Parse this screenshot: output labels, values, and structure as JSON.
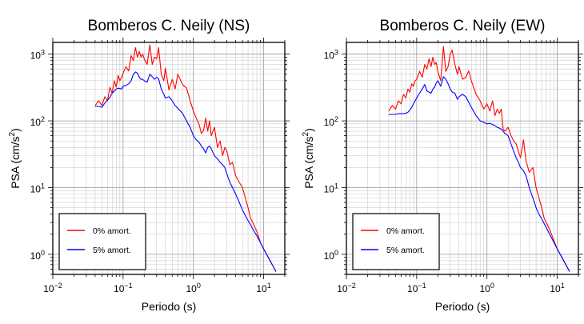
{
  "chart_data": [
    {
      "type": "line",
      "title": "Bomberos C. Neily (NS)",
      "xlabel": "Periodo (s)",
      "ylabel_main": "PSA (cm/s",
      "ylabel_sup": "2",
      "ylabel_close": ")",
      "xscale": "log",
      "yscale": "log",
      "xlim": [
        0.01,
        20
      ],
      "ylim": [
        0.5,
        1500
      ],
      "grid": true,
      "legend_position": "bottom-left",
      "xticks": [
        {
          "value": 0.01,
          "base": "10",
          "exp": "−2"
        },
        {
          "value": 0.1,
          "base": "10",
          "exp": "−1"
        },
        {
          "value": 1,
          "base": "10",
          "exp": "0"
        },
        {
          "value": 10,
          "base": "10",
          "exp": "1"
        }
      ],
      "yticks": [
        {
          "value": 1,
          "base": "10",
          "exp": "0"
        },
        {
          "value": 10,
          "base": "10",
          "exp": "1"
        },
        {
          "value": 100,
          "base": "10",
          "exp": "2"
        },
        {
          "value": 1000,
          "base": "10",
          "exp": "3"
        }
      ],
      "series": [
        {
          "name": "0% amort.",
          "color": "#ff0000",
          "x": [
            0.04,
            0.045,
            0.05,
            0.055,
            0.06,
            0.065,
            0.07,
            0.075,
            0.08,
            0.085,
            0.09,
            0.095,
            0.1,
            0.11,
            0.12,
            0.13,
            0.14,
            0.15,
            0.16,
            0.17,
            0.18,
            0.19,
            0.2,
            0.22,
            0.24,
            0.26,
            0.28,
            0.3,
            0.32,
            0.35,
            0.38,
            0.4,
            0.45,
            0.5,
            0.55,
            0.6,
            0.7,
            0.8,
            0.9,
            1.0,
            1.1,
            1.2,
            1.3,
            1.4,
            1.5,
            1.6,
            1.7,
            1.8,
            2.0,
            2.2,
            2.4,
            2.6,
            2.8,
            3.0,
            3.3,
            3.6,
            4.0,
            4.5,
            5.0,
            5.5,
            6.0,
            6.5,
            7.0,
            8.0,
            9.0,
            10.0,
            12.0,
            15.0
          ],
          "y": [
            170,
            200,
            170,
            230,
            200,
            320,
            260,
            400,
            320,
            480,
            400,
            450,
            520,
            650,
            560,
            950,
            800,
            1250,
            900,
            1100,
            900,
            1000,
            850,
            700,
            1380,
            700,
            900,
            850,
            1250,
            500,
            400,
            620,
            290,
            420,
            300,
            500,
            350,
            310,
            200,
            140,
            110,
            90,
            65,
            72,
            110,
            70,
            100,
            60,
            80,
            40,
            50,
            30,
            40,
            35,
            22,
            24,
            15,
            12,
            10,
            7,
            5,
            3.5,
            3,
            2.2,
            1.5,
            1.2,
            0.85,
            0.55
          ]
        },
        {
          "name": "5% amort.",
          "color": "#0000ff",
          "x": [
            0.04,
            0.045,
            0.05,
            0.055,
            0.06,
            0.065,
            0.07,
            0.075,
            0.08,
            0.085,
            0.09,
            0.095,
            0.1,
            0.11,
            0.12,
            0.13,
            0.14,
            0.15,
            0.16,
            0.17,
            0.18,
            0.19,
            0.2,
            0.22,
            0.24,
            0.26,
            0.28,
            0.3,
            0.32,
            0.35,
            0.38,
            0.4,
            0.45,
            0.5,
            0.55,
            0.6,
            0.7,
            0.8,
            0.9,
            1.0,
            1.1,
            1.2,
            1.3,
            1.4,
            1.5,
            1.6,
            1.7,
            1.8,
            2.0,
            2.2,
            2.4,
            2.6,
            2.8,
            3.0,
            3.3,
            3.6,
            4.0,
            4.5,
            5.0,
            5.5,
            6.0,
            6.5,
            7.0,
            8.0,
            9.0,
            10.0,
            12.0,
            15.0
          ],
          "y": [
            165,
            165,
            160,
            185,
            205,
            225,
            260,
            280,
            300,
            310,
            305,
            300,
            330,
            340,
            360,
            400,
            500,
            540,
            520,
            450,
            420,
            420,
            400,
            380,
            500,
            460,
            420,
            450,
            430,
            300,
            250,
            220,
            230,
            200,
            170,
            155,
            130,
            100,
            80,
            60,
            52,
            48,
            42,
            38,
            33,
            40,
            42,
            38,
            30,
            27,
            24,
            22,
            20,
            16,
            12,
            10,
            8,
            6,
            4.6,
            3.8,
            3.2,
            2.8,
            2.4,
            1.9,
            1.5,
            1.2,
            0.85,
            0.55
          ]
        }
      ]
    },
    {
      "type": "line",
      "title": "Bomberos C. Neily (EW)",
      "xlabel": "Periodo (s)",
      "ylabel_main": "PSA (cm/s",
      "ylabel_sup": "2",
      "ylabel_close": ")",
      "xscale": "log",
      "yscale": "log",
      "xlim": [
        0.01,
        20
      ],
      "ylim": [
        0.5,
        1500
      ],
      "grid": true,
      "legend_position": "bottom-left",
      "xticks": [
        {
          "value": 0.01,
          "base": "10",
          "exp": "−2"
        },
        {
          "value": 0.1,
          "base": "10",
          "exp": "−1"
        },
        {
          "value": 1,
          "base": "10",
          "exp": "0"
        },
        {
          "value": 10,
          "base": "10",
          "exp": "1"
        }
      ],
      "yticks": [
        {
          "value": 1,
          "base": "10",
          "exp": "0"
        },
        {
          "value": 10,
          "base": "10",
          "exp": "1"
        },
        {
          "value": 100,
          "base": "10",
          "exp": "2"
        },
        {
          "value": 1000,
          "base": "10",
          "exp": "3"
        }
      ],
      "series": [
        {
          "name": "0% amort.",
          "color": "#ff0000",
          "x": [
            0.04,
            0.045,
            0.05,
            0.055,
            0.06,
            0.065,
            0.07,
            0.075,
            0.08,
            0.085,
            0.09,
            0.095,
            0.1,
            0.11,
            0.12,
            0.13,
            0.14,
            0.15,
            0.16,
            0.17,
            0.18,
            0.19,
            0.2,
            0.22,
            0.24,
            0.26,
            0.28,
            0.3,
            0.32,
            0.35,
            0.38,
            0.4,
            0.45,
            0.5,
            0.55,
            0.6,
            0.7,
            0.8,
            0.9,
            1.0,
            1.1,
            1.2,
            1.3,
            1.4,
            1.5,
            1.6,
            1.7,
            1.8,
            2.0,
            2.2,
            2.4,
            2.6,
            2.8,
            3.0,
            3.3,
            3.6,
            4.0,
            4.5,
            5.0,
            5.5,
            6.0,
            6.5,
            7.0,
            8.0,
            9.0,
            10.0,
            12.0,
            15.0
          ],
          "y": [
            140,
            170,
            150,
            200,
            180,
            250,
            220,
            300,
            270,
            360,
            330,
            400,
            420,
            550,
            450,
            700,
            600,
            850,
            650,
            900,
            700,
            750,
            550,
            400,
            1300,
            550,
            650,
            1000,
            1150,
            700,
            500,
            650,
            420,
            450,
            560,
            400,
            250,
            200,
            150,
            180,
            140,
            200,
            120,
            150,
            130,
            150,
            75,
            70,
            80,
            60,
            50,
            45,
            35,
            28,
            52,
            25,
            17,
            20,
            10,
            7,
            5,
            3.5,
            3,
            2.2,
            1.6,
            1.2,
            0.85,
            0.55
          ]
        },
        {
          "name": "5% amort.",
          "color": "#0000ff",
          "x": [
            0.04,
            0.045,
            0.05,
            0.055,
            0.06,
            0.065,
            0.07,
            0.075,
            0.08,
            0.085,
            0.09,
            0.095,
            0.1,
            0.11,
            0.12,
            0.13,
            0.14,
            0.15,
            0.16,
            0.17,
            0.18,
            0.19,
            0.2,
            0.22,
            0.24,
            0.26,
            0.28,
            0.3,
            0.32,
            0.35,
            0.38,
            0.4,
            0.45,
            0.5,
            0.55,
            0.6,
            0.7,
            0.8,
            0.9,
            1.0,
            1.1,
            1.2,
            1.3,
            1.4,
            1.5,
            1.6,
            1.7,
            1.8,
            2.0,
            2.2,
            2.4,
            2.6,
            2.8,
            3.0,
            3.3,
            3.6,
            4.0,
            4.5,
            5.0,
            5.5,
            6.0,
            6.5,
            7.0,
            8.0,
            9.0,
            10.0,
            12.0,
            15.0
          ],
          "y": [
            125,
            125,
            125,
            128,
            128,
            128,
            130,
            135,
            145,
            160,
            180,
            200,
            220,
            260,
            300,
            350,
            280,
            270,
            260,
            300,
            320,
            370,
            400,
            330,
            460,
            420,
            360,
            300,
            270,
            260,
            210,
            230,
            250,
            230,
            190,
            160,
            120,
            100,
            95,
            90,
            92,
            88,
            85,
            80,
            78,
            75,
            70,
            65,
            60,
            45,
            35,
            28,
            24,
            20,
            18,
            15,
            10,
            7,
            5,
            4,
            3.4,
            2.9,
            2.5,
            1.9,
            1.5,
            1.2,
            0.85,
            0.55
          ]
        }
      ]
    }
  ]
}
